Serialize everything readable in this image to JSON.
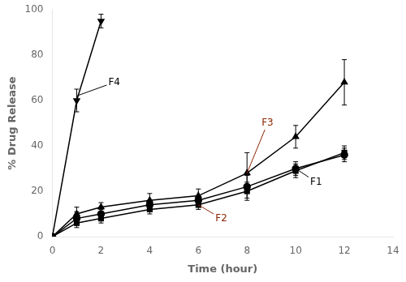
{
  "chart_data": {
    "type": "line",
    "xlabel": "Time (hour)",
    "ylabel": "% Drug Release",
    "xlim": [
      0,
      14
    ],
    "ylim": [
      0,
      100
    ],
    "xticks": [
      0,
      2,
      4,
      6,
      8,
      10,
      12,
      14
    ],
    "yticks": [
      0,
      20,
      40,
      60,
      80,
      100
    ],
    "grid": false,
    "series": [
      {
        "name": "F4",
        "color": "#000000",
        "marker": "triangle_down",
        "line_style": "solid",
        "x": [
          0,
          1,
          2
        ],
        "values": [
          0,
          60,
          95
        ],
        "yerr": [
          0,
          5,
          3
        ]
      },
      {
        "name": "F3",
        "color": "#000000",
        "marker": "triangle_up",
        "line_style": "solid",
        "x": [
          0,
          1,
          2,
          4,
          6,
          8,
          10,
          12
        ],
        "values": [
          0,
          10,
          13,
          16,
          18,
          28,
          44,
          68
        ],
        "yerr": [
          0,
          3,
          2,
          3,
          3,
          9,
          5,
          10
        ]
      },
      {
        "name": "F1",
        "color": "#000000",
        "marker": "circle",
        "line_style": "solid",
        "x": [
          0,
          1,
          2,
          4,
          6,
          8,
          10,
          12
        ],
        "values": [
          0,
          8,
          10,
          14,
          16,
          22,
          30,
          36
        ],
        "yerr": [
          0,
          3,
          2,
          2,
          2,
          5,
          3,
          3
        ]
      },
      {
        "name": "F2",
        "color": "#000000",
        "marker": "square",
        "line_style": "solid",
        "x": [
          0,
          1,
          2,
          4,
          6,
          8,
          10,
          12
        ],
        "values": [
          0,
          6,
          8,
          12,
          14,
          20,
          29,
          37
        ],
        "yerr": [
          0,
          2,
          2,
          2,
          2,
          4,
          3,
          3
        ]
      }
    ],
    "annotations": [
      {
        "text": "F4",
        "xy": [
          1.0,
          62
        ],
        "xytext": [
          2.3,
          68
        ],
        "color": "#000000"
      },
      {
        "text": "F3",
        "xy": [
          8.0,
          28
        ],
        "xytext": [
          8.6,
          50
        ],
        "color": "#8B2500"
      },
      {
        "text": "F2",
        "xy": [
          6.0,
          14
        ],
        "xytext": [
          6.7,
          8
        ],
        "color": "#8B2500"
      },
      {
        "text": "F1",
        "xy": [
          10.0,
          30
        ],
        "xytext": [
          10.6,
          24
        ],
        "color": "#000000"
      }
    ]
  }
}
